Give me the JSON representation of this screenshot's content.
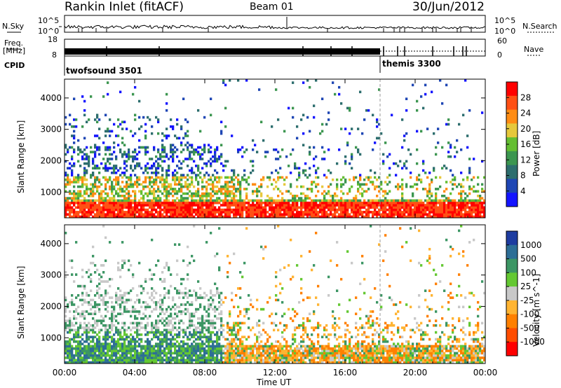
{
  "header": {
    "station": "Rankin Inlet (fitACF)",
    "beam": "Beam 01",
    "date": "30/Jun/2012"
  },
  "top_panels": {
    "nsky_label": "N.Sky",
    "nsky_tick_hi": "10^5",
    "nsky_tick_lo": "10^0",
    "nsearch_label": "N.Search",
    "nsearch_tick_hi": "10^5",
    "nsearch_tick_lo": "10^0",
    "freq_label_1": "Freq.",
    "freq_label_2": "[MHz]",
    "freq_tick_hi": "18",
    "freq_tick_lo": "8",
    "nave_label": "Nave",
    "nave_tick_hi": "60",
    "nave_tick_lo": "0",
    "cpid_label": "CPID",
    "cpid_mode_1": "twofsound 3501",
    "cpid_mode_2": "themis 3300"
  },
  "colors": {
    "power": [
      "#1414ff",
      "#1e46b4",
      "#2d6e6e",
      "#3c9650",
      "#64be32",
      "#e6c83c",
      "#ff8c14",
      "#ff5014",
      "#ff0000"
    ],
    "velocity": [
      "#ff0000",
      "#ff4d00",
      "#ff8000",
      "#ffb432",
      "#c8c8c8",
      "#64c832",
      "#3c9664",
      "#2d6e96",
      "#1e3ca0"
    ]
  },
  "chart_data": [
    {
      "type": "heatmap",
      "title": "",
      "xlabel": "",
      "ylabel": "Slant Range [km]",
      "x_ticks": [
        "00:00",
        "04:00",
        "08:00",
        "12:00",
        "16:00",
        "20:00",
        "00:00"
      ],
      "y_ticks": [
        "1000",
        "2000",
        "3000",
        "4000"
      ],
      "ylim": [
        180,
        4600
      ],
      "colorbar_label": "Power [dB]",
      "colorbar_ticks": [
        "4",
        "8",
        "12",
        "16",
        "20",
        "24",
        "28"
      ],
      "color_range": [
        0,
        30
      ],
      "mode_change_time_hours": 18.0
    },
    {
      "type": "heatmap",
      "title": "",
      "xlabel": "Time UT",
      "ylabel": "Slant Range [km]",
      "x_ticks": [
        "00:00",
        "04:00",
        "08:00",
        "12:00",
        "16:00",
        "20:00",
        "00:00"
      ],
      "y_ticks": [
        "1000",
        "2000",
        "3000",
        "4000"
      ],
      "ylim": [
        180,
        4600
      ],
      "colorbar_label": "Velocity [m s^-1]",
      "colorbar_ticks": [
        "1000",
        "500",
        "100",
        "25",
        "-25",
        "-100",
        "-500",
        "-1000"
      ],
      "color_range": [
        -1000,
        1000
      ],
      "mode_change_time_hours": 18.0
    }
  ]
}
